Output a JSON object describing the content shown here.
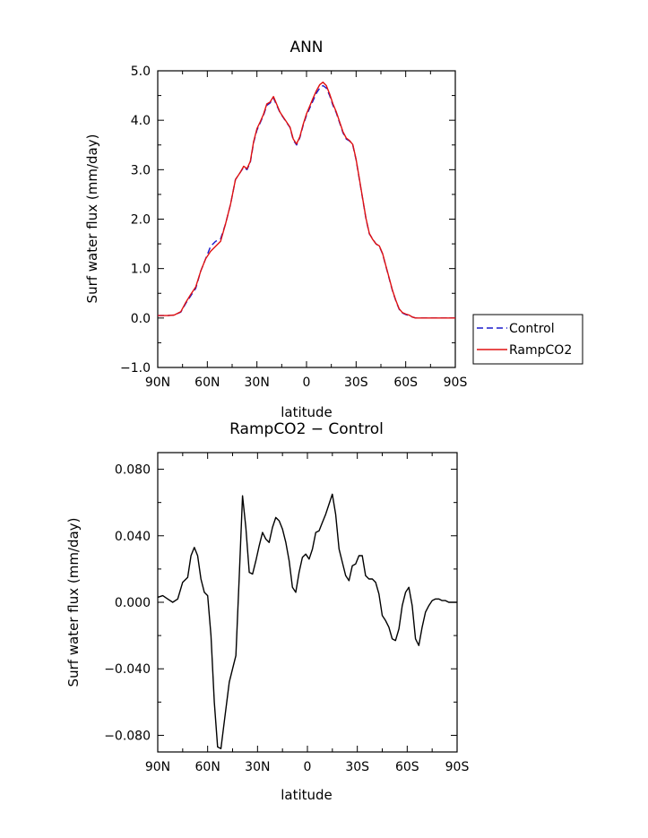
{
  "chart_data": [
    {
      "type": "line",
      "title": "ANN",
      "xlabel": "latitude",
      "ylabel": "Surf water flux (mm/day)",
      "xlim": [
        90,
        -90
      ],
      "ylim": [
        -1.0,
        5.0
      ],
      "x_ticks": [
        90,
        60,
        30,
        0,
        -30,
        -60,
        -90
      ],
      "x_tick_labels": [
        "90N",
        "60N",
        "30N",
        "0",
        "30S",
        "60S",
        "90S"
      ],
      "y_ticks": [
        -1.0,
        0.0,
        1.0,
        2.0,
        3.0,
        4.0,
        5.0
      ],
      "y_tick_labels": [
        "−1.0",
        "0.0",
        "1.0",
        "2.0",
        "3.0",
        "4.0",
        "5.0"
      ],
      "grid": false,
      "legend": "outside right",
      "series": [
        {
          "name": "Control",
          "color": "#1a1acc",
          "dash": "dashed",
          "x": [
            90,
            84,
            80,
            76,
            73,
            70,
            67,
            64,
            61,
            58,
            55,
            52,
            49,
            46,
            43,
            40,
            38,
            36,
            34,
            32,
            30,
            28,
            26,
            24,
            22,
            20,
            18,
            16,
            14,
            12,
            10,
            8,
            6,
            4,
            2,
            0,
            -2,
            -4,
            -6,
            -8,
            -10,
            -12,
            -14,
            -16,
            -18,
            -20,
            -22,
            -24,
            -26,
            -28,
            -30,
            -32,
            -34,
            -36,
            -38,
            -40,
            -42,
            -44,
            -46,
            -48,
            -50,
            -52,
            -54,
            -56,
            -58,
            -60,
            -62,
            -64,
            -66,
            -68,
            -70,
            -72,
            -74,
            -76,
            -78,
            -80,
            -82,
            -84,
            -86,
            -88,
            -90
          ],
          "y": [
            0.05,
            0.05,
            0.06,
            0.12,
            0.3,
            0.45,
            0.6,
            0.95,
            1.2,
            1.45,
            1.55,
            1.6,
            1.9,
            2.3,
            2.8,
            2.95,
            3.05,
            3.0,
            3.15,
            3.55,
            3.8,
            3.95,
            4.1,
            4.3,
            4.35,
            4.45,
            4.3,
            4.15,
            4.05,
            3.95,
            3.85,
            3.6,
            3.5,
            3.65,
            3.9,
            4.1,
            4.25,
            4.4,
            4.55,
            4.65,
            4.7,
            4.65,
            4.5,
            4.3,
            4.15,
            3.95,
            3.75,
            3.62,
            3.58,
            3.5,
            3.2,
            2.8,
            2.4,
            2.0,
            1.7,
            1.6,
            1.5,
            1.45,
            1.3,
            1.05,
            0.8,
            0.55,
            0.35,
            0.18,
            0.1,
            0.07,
            0.05,
            0.02,
            0.0,
            0.0,
            0.0,
            0.0,
            0.0,
            0.0,
            0.0,
            0.0,
            0.0,
            0.0,
            0.0,
            0.0,
            0.0
          ]
        },
        {
          "name": "RampCO2",
          "color": "#e01010",
          "dash": "solid",
          "x": [
            90,
            84,
            80,
            76,
            73,
            70,
            67,
            64,
            61,
            58,
            55,
            52,
            49,
            46,
            43,
            40,
            38,
            36,
            34,
            32,
            30,
            28,
            26,
            24,
            22,
            20,
            18,
            16,
            14,
            12,
            10,
            8,
            6,
            4,
            2,
            0,
            -2,
            -4,
            -6,
            -8,
            -10,
            -12,
            -14,
            -16,
            -18,
            -20,
            -22,
            -24,
            -26,
            -28,
            -30,
            -32,
            -34,
            -36,
            -38,
            -40,
            -42,
            -44,
            -46,
            -48,
            -50,
            -52,
            -54,
            -56,
            -58,
            -60,
            -62,
            -64,
            -66,
            -68,
            -70,
            -72,
            -74,
            -76,
            -78,
            -80,
            -82,
            -84,
            -86,
            -88,
            -90
          ],
          "y": [
            0.05,
            0.05,
            0.06,
            0.13,
            0.32,
            0.48,
            0.63,
            0.95,
            1.2,
            1.35,
            1.45,
            1.55,
            1.9,
            2.3,
            2.8,
            2.95,
            3.07,
            3.02,
            3.17,
            3.57,
            3.83,
            3.97,
            4.12,
            4.33,
            4.37,
            4.48,
            4.32,
            4.16,
            4.06,
            3.96,
            3.86,
            3.62,
            3.52,
            3.67,
            3.92,
            4.13,
            4.29,
            4.45,
            4.6,
            4.72,
            4.77,
            4.7,
            4.53,
            4.33,
            4.17,
            3.97,
            3.77,
            3.64,
            3.59,
            3.51,
            3.21,
            2.81,
            2.41,
            2.01,
            1.71,
            1.59,
            1.5,
            1.46,
            1.31,
            1.06,
            0.81,
            0.56,
            0.36,
            0.19,
            0.11,
            0.08,
            0.06,
            0.02,
            0.0,
            0.0,
            0.0,
            0.0,
            0.0,
            0.0,
            0.0,
            0.0,
            0.0,
            0.0,
            0.0,
            0.0,
            0.0
          ]
        }
      ]
    },
    {
      "type": "line",
      "title": "RampCO2 − Control",
      "xlabel": "latitude",
      "ylabel": "Surf water flux (mm/day)",
      "xlim": [
        90,
        -90
      ],
      "ylim": [
        -0.09,
        0.09
      ],
      "x_ticks": [
        90,
        60,
        30,
        0,
        -30,
        -60,
        -90
      ],
      "x_tick_labels": [
        "90N",
        "60N",
        "30N",
        "0",
        "30S",
        "60S",
        "90S"
      ],
      "y_ticks": [
        -0.08,
        -0.04,
        0.0,
        0.04,
        0.08
      ],
      "y_tick_labels": [
        "−0.080",
        "−0.040",
        "0.000",
        "0.040",
        "0.080"
      ],
      "grid": false,
      "series": [
        {
          "color": "#000000",
          "x": [
            90,
            87,
            84,
            81,
            78,
            75,
            72,
            70,
            68,
            66,
            64,
            62,
            60,
            58,
            56,
            54,
            52,
            50,
            47,
            45,
            43,
            41,
            39,
            37,
            35,
            33,
            31,
            29,
            27,
            25,
            23,
            21,
            19,
            17,
            15,
            13,
            11,
            9,
            7,
            5,
            3,
            1,
            -1,
            -3,
            -5,
            -7,
            -9,
            -11,
            -13,
            -15,
            -17,
            -19,
            -21,
            -23,
            -25,
            -27,
            -29,
            -31,
            -33,
            -35,
            -37,
            -39,
            -41,
            -43,
            -45,
            -47,
            -49,
            -51,
            -53,
            -55,
            -57,
            -59,
            -61,
            -63,
            -65,
            -67,
            -69,
            -71,
            -73,
            -75,
            -77,
            -79,
            -81,
            -83,
            -85,
            -87,
            -90
          ],
          "y": [
            0.003,
            0.004,
            0.002,
            0.0,
            0.002,
            0.012,
            0.015,
            0.028,
            0.033,
            0.028,
            0.014,
            0.006,
            0.004,
            -0.02,
            -0.06,
            -0.087,
            -0.088,
            -0.072,
            -0.048,
            -0.04,
            -0.032,
            0.015,
            0.064,
            0.045,
            0.018,
            0.017,
            0.025,
            0.034,
            0.042,
            0.038,
            0.036,
            0.045,
            0.051,
            0.049,
            0.044,
            0.036,
            0.025,
            0.009,
            0.006,
            0.018,
            0.027,
            0.029,
            0.026,
            0.032,
            0.042,
            0.043,
            0.048,
            0.053,
            0.059,
            0.065,
            0.053,
            0.032,
            0.024,
            0.016,
            0.013,
            0.022,
            0.023,
            0.028,
            0.028,
            0.016,
            0.014,
            0.014,
            0.012,
            0.005,
            -0.008,
            -0.011,
            -0.015,
            -0.022,
            -0.023,
            -0.016,
            -0.002,
            0.006,
            0.009,
            -0.002,
            -0.022,
            -0.026,
            -0.015,
            -0.006,
            -0.002,
            0.001,
            0.002,
            0.002,
            0.001,
            0.001,
            0.0,
            0.0,
            0.0
          ]
        }
      ]
    }
  ]
}
